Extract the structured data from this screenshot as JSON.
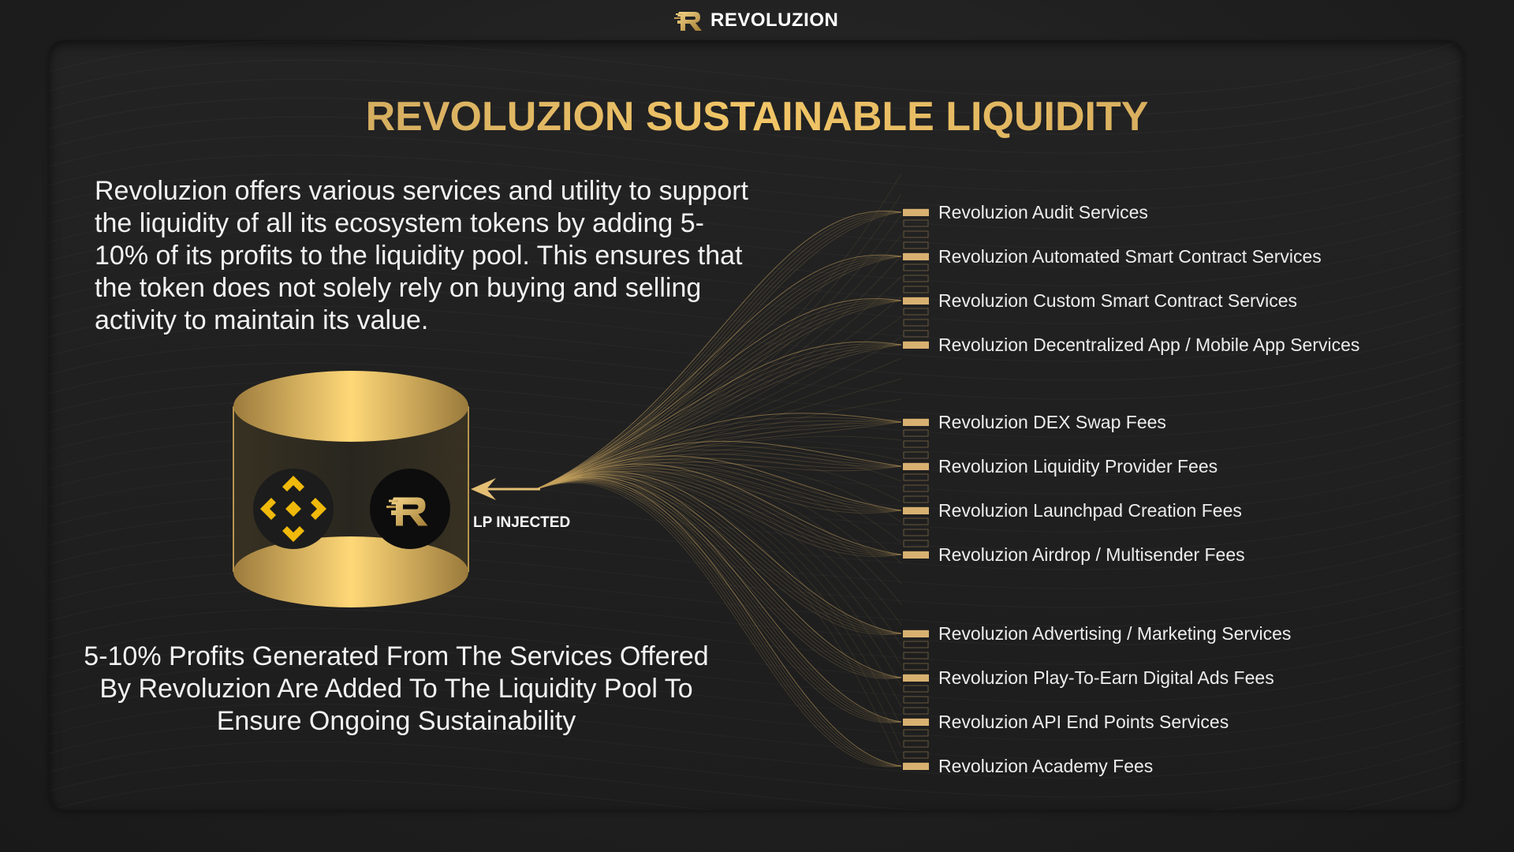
{
  "header": {
    "brand": "REVOLUZION",
    "logo_icon": "revoluzion-logo-icon"
  },
  "title": "REVOLUZION SUSTAINABLE LIQUIDITY",
  "intro": "Revoluzion offers various services and utility to support the liquidity of all its ecosystem tokens by adding 5-10% of its profits to the liquidity pool. This ensures that the token does not solely rely on buying and selling activity to maintain its value.",
  "pool": {
    "tokens": [
      {
        "icon": "binance-logo-icon"
      },
      {
        "icon": "revoluzion-logo-icon"
      }
    ],
    "arrow_label": "LP INJECTED"
  },
  "footer": "5-10% Profits Generated From The Services Offered By Revoluzion Are Added To The Liquidity Pool To Ensure Ongoing Sustainability",
  "services": [
    "Revoluzion Audit Services",
    "Revoluzion Automated Smart Contract Services",
    "Revoluzion Custom Smart Contract Services",
    "Revoluzion Decentralized App / Mobile App Services",
    "Revoluzion DEX Swap Fees",
    "Revoluzion Liquidity Provider Fees",
    "Revoluzion Launchpad Creation Fees",
    "Revoluzion Airdrop / Multisender Fees",
    "Revoluzion Advertising / Marketing Services",
    "Revoluzion Play-To-Earn Digital Ads Fees",
    "Revoluzion API End Points Services",
    "Revoluzion Academy Fees"
  ],
  "colors": {
    "gold": "#d8b171",
    "gold_light": "#ffd878",
    "gold_dark": "#9a7a3c",
    "binance_yellow": "#f0b90b",
    "background": "#1f1f1f"
  }
}
